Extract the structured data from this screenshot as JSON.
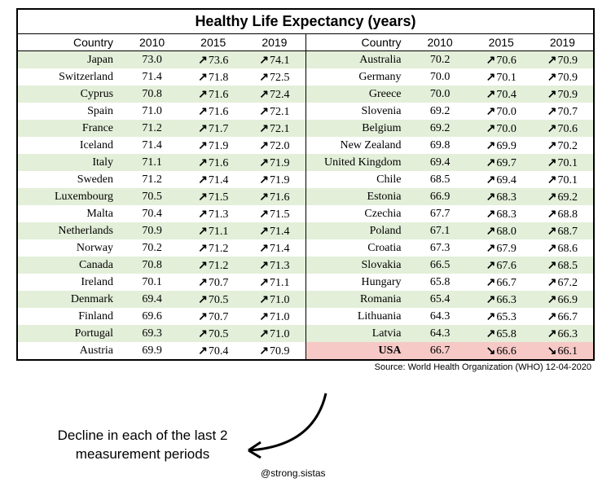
{
  "title": "Healthy Life Expectancy (years)",
  "columns": [
    "Country",
    "2010",
    "2015",
    "2019"
  ],
  "left_rows": [
    {
      "country": "Japan",
      "v2010": "73.0",
      "v2015": "73.6",
      "v2019": "74.1",
      "d2015": "up",
      "d2019": "up"
    },
    {
      "country": "Switzerland",
      "v2010": "71.4",
      "v2015": "71.8",
      "v2019": "72.5",
      "d2015": "up",
      "d2019": "up"
    },
    {
      "country": "Cyprus",
      "v2010": "70.8",
      "v2015": "71.6",
      "v2019": "72.4",
      "d2015": "up",
      "d2019": "up"
    },
    {
      "country": "Spain",
      "v2010": "71.0",
      "v2015": "71.6",
      "v2019": "72.1",
      "d2015": "up",
      "d2019": "up"
    },
    {
      "country": "France",
      "v2010": "71.2",
      "v2015": "71.7",
      "v2019": "72.1",
      "d2015": "up",
      "d2019": "up"
    },
    {
      "country": "Iceland",
      "v2010": "71.4",
      "v2015": "71.9",
      "v2019": "72.0",
      "d2015": "up",
      "d2019": "up"
    },
    {
      "country": "Italy",
      "v2010": "71.1",
      "v2015": "71.6",
      "v2019": "71.9",
      "d2015": "up",
      "d2019": "up"
    },
    {
      "country": "Sweden",
      "v2010": "71.2",
      "v2015": "71.4",
      "v2019": "71.9",
      "d2015": "up",
      "d2019": "up"
    },
    {
      "country": "Luxembourg",
      "v2010": "70.5",
      "v2015": "71.5",
      "v2019": "71.6",
      "d2015": "up",
      "d2019": "up"
    },
    {
      "country": "Malta",
      "v2010": "70.4",
      "v2015": "71.3",
      "v2019": "71.5",
      "d2015": "up",
      "d2019": "up"
    },
    {
      "country": "Netherlands",
      "v2010": "70.9",
      "v2015": "71.1",
      "v2019": "71.4",
      "d2015": "up",
      "d2019": "up"
    },
    {
      "country": "Norway",
      "v2010": "70.2",
      "v2015": "71.2",
      "v2019": "71.4",
      "d2015": "up",
      "d2019": "up"
    },
    {
      "country": "Canada",
      "v2010": "70.8",
      "v2015": "71.2",
      "v2019": "71.3",
      "d2015": "up",
      "d2019": "up"
    },
    {
      "country": "Ireland",
      "v2010": "70.1",
      "v2015": "70.7",
      "v2019": "71.1",
      "d2015": "up",
      "d2019": "up"
    },
    {
      "country": "Denmark",
      "v2010": "69.4",
      "v2015": "70.5",
      "v2019": "71.0",
      "d2015": "up",
      "d2019": "up"
    },
    {
      "country": "Finland",
      "v2010": "69.6",
      "v2015": "70.7",
      "v2019": "71.0",
      "d2015": "up",
      "d2019": "up"
    },
    {
      "country": "Portugal",
      "v2010": "69.3",
      "v2015": "70.5",
      "v2019": "71.0",
      "d2015": "up",
      "d2019": "up"
    },
    {
      "country": "Austria",
      "v2010": "69.9",
      "v2015": "70.4",
      "v2019": "70.9",
      "d2015": "up",
      "d2019": "up"
    }
  ],
  "right_rows": [
    {
      "country": "Australia",
      "v2010": "70.2",
      "v2015": "70.6",
      "v2019": "70.9",
      "d2015": "up",
      "d2019": "up"
    },
    {
      "country": "Germany",
      "v2010": "70.0",
      "v2015": "70.1",
      "v2019": "70.9",
      "d2015": "up",
      "d2019": "up"
    },
    {
      "country": "Greece",
      "v2010": "70.0",
      "v2015": "70.4",
      "v2019": "70.9",
      "d2015": "up",
      "d2019": "up"
    },
    {
      "country": "Slovenia",
      "v2010": "69.2",
      "v2015": "70.0",
      "v2019": "70.7",
      "d2015": "up",
      "d2019": "up"
    },
    {
      "country": "Belgium",
      "v2010": "69.2",
      "v2015": "70.0",
      "v2019": "70.6",
      "d2015": "up",
      "d2019": "up"
    },
    {
      "country": "New Zealand",
      "v2010": "69.8",
      "v2015": "69.9",
      "v2019": "70.2",
      "d2015": "up",
      "d2019": "up"
    },
    {
      "country": "United Kingdom",
      "v2010": "69.4",
      "v2015": "69.7",
      "v2019": "70.1",
      "d2015": "up",
      "d2019": "up"
    },
    {
      "country": "Chile",
      "v2010": "68.5",
      "v2015": "69.4",
      "v2019": "70.1",
      "d2015": "up",
      "d2019": "up"
    },
    {
      "country": "Estonia",
      "v2010": "66.9",
      "v2015": "68.3",
      "v2019": "69.2",
      "d2015": "up",
      "d2019": "up"
    },
    {
      "country": "Czechia",
      "v2010": "67.7",
      "v2015": "68.3",
      "v2019": "68.8",
      "d2015": "up",
      "d2019": "up"
    },
    {
      "country": "Poland",
      "v2010": "67.1",
      "v2015": "68.0",
      "v2019": "68.7",
      "d2015": "up",
      "d2019": "up"
    },
    {
      "country": "Croatia",
      "v2010": "67.3",
      "v2015": "67.9",
      "v2019": "68.6",
      "d2015": "up",
      "d2019": "up"
    },
    {
      "country": "Slovakia",
      "v2010": "66.5",
      "v2015": "67.6",
      "v2019": "68.5",
      "d2015": "up",
      "d2019": "up"
    },
    {
      "country": "Hungary",
      "v2010": "65.8",
      "v2015": "66.7",
      "v2019": "67.2",
      "d2015": "up",
      "d2019": "up"
    },
    {
      "country": "Romania",
      "v2010": "65.4",
      "v2015": "66.3",
      "v2019": "66.9",
      "d2015": "up",
      "d2019": "up"
    },
    {
      "country": "Lithuania",
      "v2010": "64.3",
      "v2015": "65.3",
      "v2019": "66.7",
      "d2015": "up",
      "d2019": "up"
    },
    {
      "country": "Latvia",
      "v2010": "64.3",
      "v2015": "65.8",
      "v2019": "66.3",
      "d2015": "up",
      "d2019": "up"
    },
    {
      "country": "USA",
      "v2010": "66.7",
      "v2015": "66.6",
      "v2019": "66.1",
      "d2015": "down",
      "d2019": "down",
      "highlight": true
    }
  ],
  "source": "Source: World Health Organization (WHO) 12-04-2020",
  "annotation": "Decline in each of the last 2 measurement periods",
  "handle": "@strong.sistas",
  "colors": {
    "row_green": "#e3efd9",
    "row_pink": "#f6c9c7",
    "border": "#000000",
    "text": "#000000",
    "bg": "#ffffff"
  },
  "arrows": {
    "up": "↗",
    "down": "↘"
  }
}
